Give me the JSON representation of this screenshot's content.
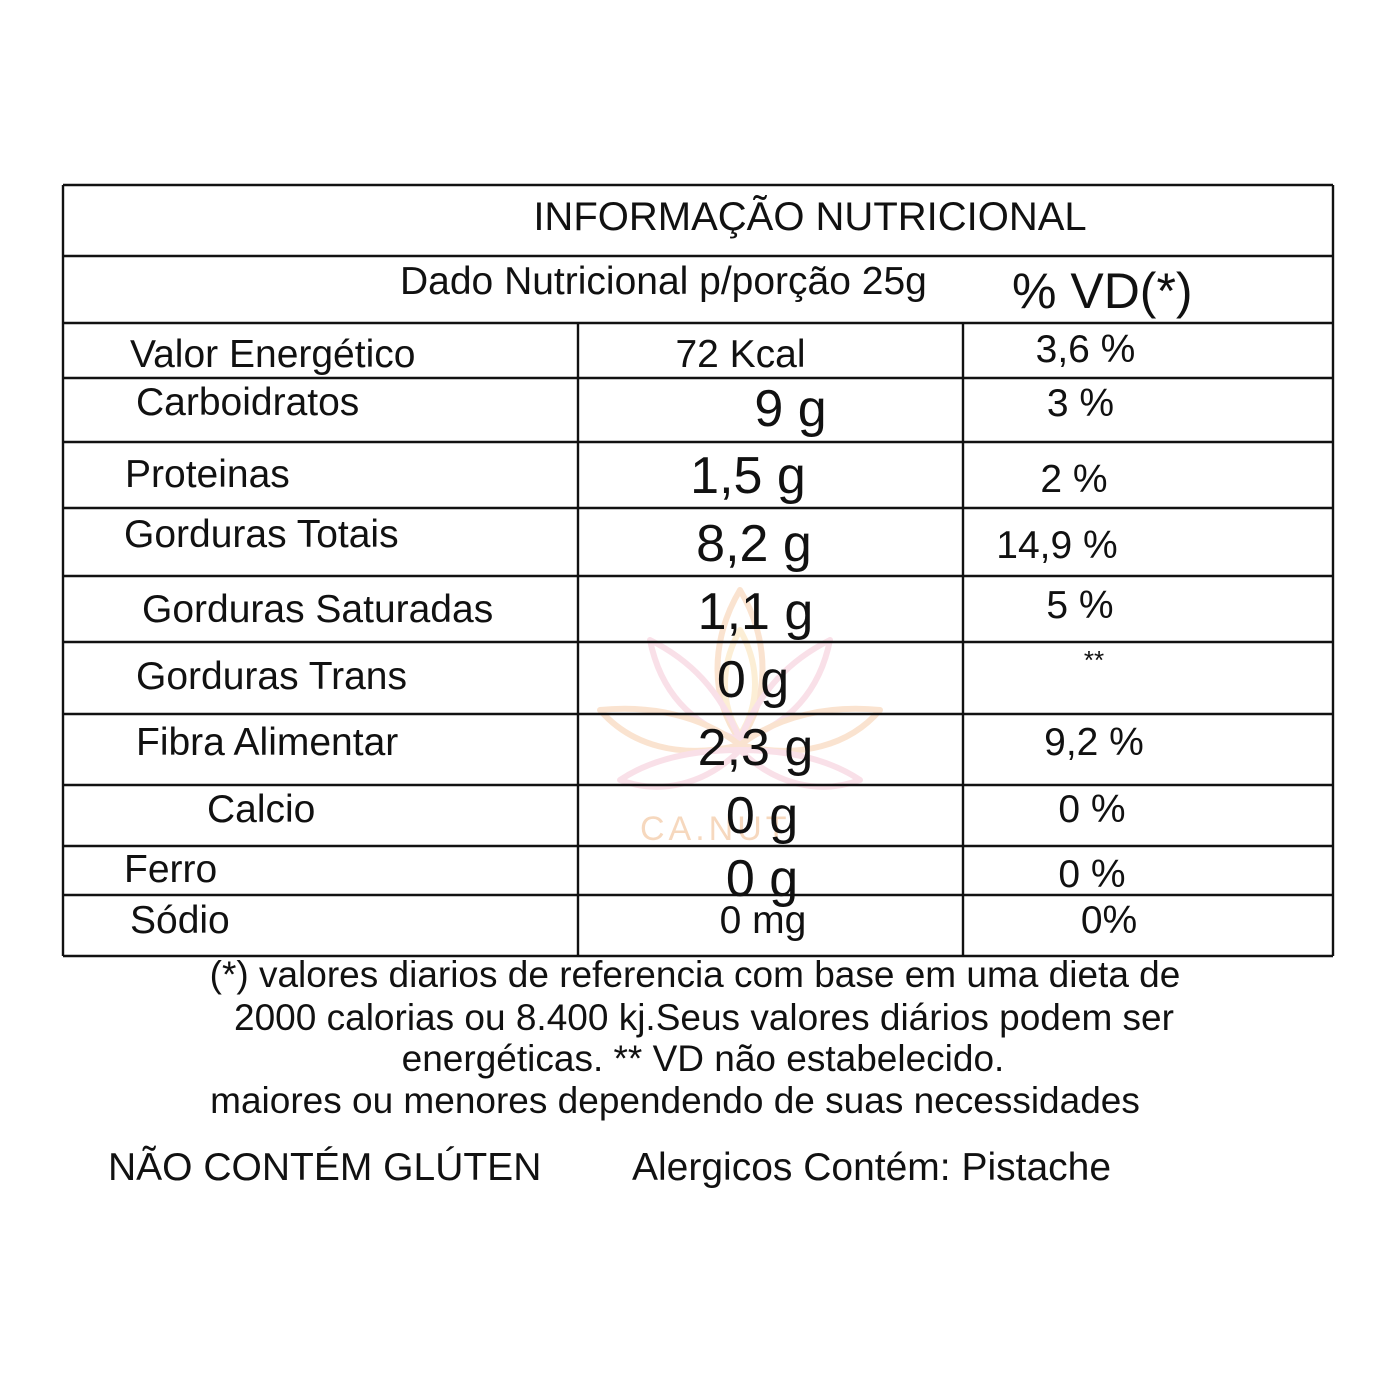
{
  "title": "INFORMAÇÃO NUTRICIONAL",
  "portion_label": "Dado Nutricional p/porção 25g",
  "vd_header": "% VD(*)",
  "rows": [
    {
      "name": "Valor Energético",
      "amount": "72 Kcal",
      "vd": "3,6 %"
    },
    {
      "name": "Carboidratos",
      "amount": "9 g",
      "vd": "3 %"
    },
    {
      "name": "Proteinas",
      "amount": "1,5 g",
      "vd": "2 %"
    },
    {
      "name": "Gorduras Totais",
      "amount": "8,2 g",
      "vd": "14,9 %"
    },
    {
      "name": "Gorduras Saturadas",
      "amount": "1,1 g",
      "vd": "5 %"
    },
    {
      "name": "Gorduras Trans",
      "amount": "0 g",
      "vd": "**"
    },
    {
      "name": "Fibra Alimentar",
      "amount": "2,3 g",
      "vd": "9,2 %"
    },
    {
      "name": "Calcio",
      "amount": "0 g",
      "vd": "0 %"
    },
    {
      "name": "Ferro",
      "amount": "0 g",
      "vd": "0 %"
    },
    {
      "name": "Sódio",
      "amount": "0 mg",
      "vd": "0%"
    }
  ],
  "footnote": {
    "line1": "(*) valores diarios de referencia com base em uma dieta de",
    "line2": "2000 calorias ou 8.400 kj.Seus valores diários podem ser",
    "line3": "energéticas. ** VD não estabelecido.",
    "line4": "maiores ou menores dependendo de suas necessidades"
  },
  "gluten_notice": "NÃO CONTÉM GLÚTEN",
  "allergen_notice": "Alergicos Contém: Pistache",
  "watermark": {
    "brand": "CA.NUT",
    "icon": "lotus-logo-icon",
    "colors": [
      "#f3b27a",
      "#f0a8c0",
      "#f7d08a"
    ]
  }
}
